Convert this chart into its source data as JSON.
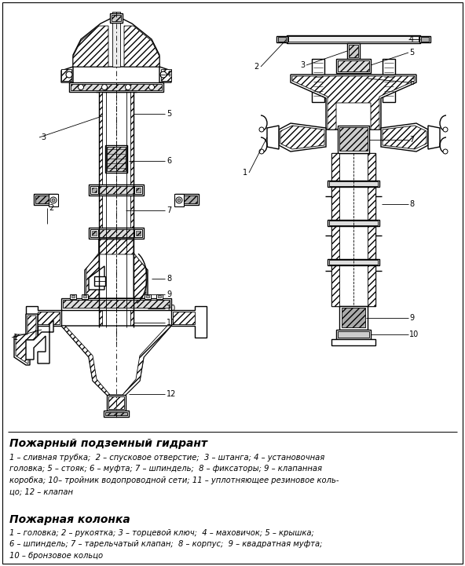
{
  "title1": "Пожарный подземный гидрант",
  "title2": "Пожарная колонка",
  "legend1": "1 – сливная трубка;  2 – спусковое отверстие;  3 – штанга; 4 – установочная\nголовка; 5 – стояк; 6 – муфта; 7 – шпиндель;  8 – фиксаторы; 9 – клапанная\nкоробка; 10– тройник водопроводной сети; 11 – уплотняющее резиновое коль-\nцо; 12 – клапан",
  "legend2": "1 – головка; 2 – рукоятка; 3 – торцевой ключ;  4 – маховичок; 5 – крышка;\n6 – шпиндель; 7 – тарельчатый клапан;  8 – корпус;  9 – квадратная муфта;\n10 – бронзовое кольцо",
  "bg_color": "#ffffff",
  "lw_main": 1.0,
  "lw_thin": 0.6,
  "lw_thick": 1.5
}
